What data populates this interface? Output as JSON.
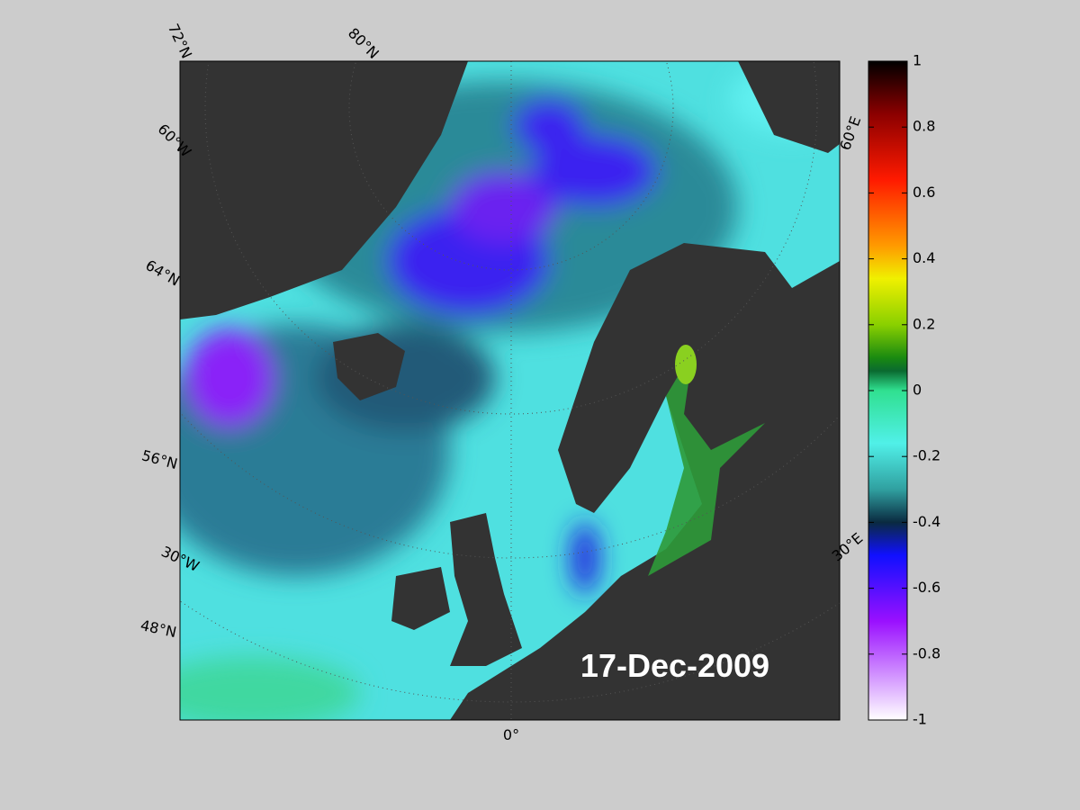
{
  "map": {
    "date_label": "17-Dec-2009",
    "graticule_labels": [
      "72°N",
      "80°N",
      "60°W",
      "64°N",
      "56°N",
      "30°W",
      "48°N",
      "0°",
      "60°E",
      "30°E"
    ],
    "colorbar": {
      "lim": [
        -1,
        1
      ],
      "ticks": [
        1,
        0.8,
        0.6,
        0.4,
        0.2,
        0,
        -0.2,
        -0.4,
        -0.6,
        -0.8,
        -1
      ]
    }
  }
}
